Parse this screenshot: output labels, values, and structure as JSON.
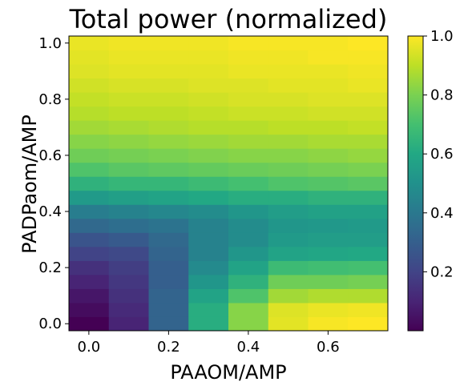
{
  "chart_data": {
    "type": "heatmap",
    "title": "Total power (normalized)",
    "xlabel": "PAAOM/AMP",
    "ylabel": "PADPaom/AMP",
    "x_values": [
      0.0,
      0.1,
      0.2,
      0.3,
      0.4,
      0.5,
      0.6,
      0.7
    ],
    "y_values": [
      0.0,
      0.05,
      0.1,
      0.15,
      0.2,
      0.25,
      0.3,
      0.35,
      0.4,
      0.45,
      0.5,
      0.55,
      0.6,
      0.65,
      0.7,
      0.75,
      0.8,
      0.85,
      0.9,
      0.95,
      1.0
    ],
    "xlim": [
      -0.05,
      0.75
    ],
    "ylim": [
      -0.025,
      1.025
    ],
    "x_ticks": [
      "0.0",
      "0.2",
      "0.4",
      "0.6"
    ],
    "x_tick_values": [
      0.0,
      0.2,
      0.4,
      0.6
    ],
    "y_ticks": [
      "0.0",
      "0.2",
      "0.4",
      "0.6",
      "0.8",
      "1.0"
    ],
    "y_tick_values": [
      0.0,
      0.2,
      0.4,
      0.6,
      0.8,
      1.0
    ],
    "values": [
      [
        0.0,
        0.1,
        0.32,
        0.62,
        0.82,
        0.96,
        0.99,
        1.0
      ],
      [
        0.03,
        0.12,
        0.32,
        0.62,
        0.82,
        0.95,
        0.97,
        0.98
      ],
      [
        0.06,
        0.14,
        0.32,
        0.58,
        0.72,
        0.86,
        0.88,
        0.88
      ],
      [
        0.1,
        0.16,
        0.3,
        0.52,
        0.64,
        0.78,
        0.78,
        0.79
      ],
      [
        0.14,
        0.18,
        0.3,
        0.47,
        0.58,
        0.68,
        0.69,
        0.7
      ],
      [
        0.2,
        0.22,
        0.32,
        0.44,
        0.52,
        0.58,
        0.59,
        0.6
      ],
      [
        0.26,
        0.28,
        0.34,
        0.44,
        0.48,
        0.54,
        0.55,
        0.55
      ],
      [
        0.34,
        0.36,
        0.38,
        0.44,
        0.48,
        0.52,
        0.53,
        0.54
      ],
      [
        0.42,
        0.44,
        0.46,
        0.48,
        0.52,
        0.55,
        0.57,
        0.57
      ],
      [
        0.54,
        0.56,
        0.58,
        0.6,
        0.62,
        0.62,
        0.64,
        0.64
      ],
      [
        0.64,
        0.66,
        0.66,
        0.68,
        0.7,
        0.72,
        0.73,
        0.74
      ],
      [
        0.72,
        0.74,
        0.75,
        0.76,
        0.77,
        0.78,
        0.79,
        0.8
      ],
      [
        0.78,
        0.79,
        0.8,
        0.81,
        0.82,
        0.82,
        0.83,
        0.84
      ],
      [
        0.82,
        0.83,
        0.84,
        0.85,
        0.86,
        0.86,
        0.87,
        0.87
      ],
      [
        0.86,
        0.87,
        0.88,
        0.89,
        0.89,
        0.9,
        0.9,
        0.91
      ],
      [
        0.89,
        0.9,
        0.9,
        0.91,
        0.92,
        0.92,
        0.93,
        0.93
      ],
      [
        0.91,
        0.92,
        0.92,
        0.93,
        0.94,
        0.94,
        0.95,
        0.95
      ],
      [
        0.93,
        0.94,
        0.94,
        0.95,
        0.95,
        0.96,
        0.96,
        0.97
      ],
      [
        0.95,
        0.96,
        0.96,
        0.96,
        0.97,
        0.97,
        0.97,
        0.98
      ],
      [
        0.96,
        0.97,
        0.97,
        0.97,
        0.98,
        0.98,
        0.99,
        0.99
      ],
      [
        0.97,
        0.98,
        0.98,
        0.98,
        0.99,
        0.99,
        0.99,
        1.0
      ]
    ],
    "colormap": "viridis",
    "colorbar": {
      "range": [
        0.0,
        1.0
      ],
      "ticks": [
        "0.2",
        "0.4",
        "0.6",
        "0.8",
        "1.0"
      ],
      "tick_values": [
        0.2,
        0.4,
        0.6,
        0.8,
        1.0
      ]
    },
    "grid": false
  }
}
